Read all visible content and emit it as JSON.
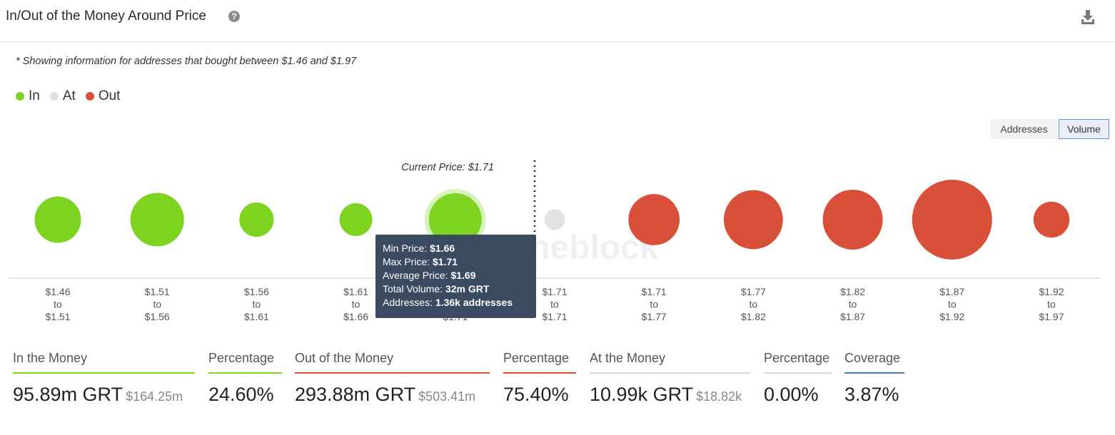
{
  "header": {
    "title": "In/Out of the Money Around Price",
    "help_icon": "question-circle-icon",
    "download_icon": "download-icon"
  },
  "note": "* Showing information for addresses that bought between $1.46 and $1.97",
  "legend": [
    {
      "label": "In",
      "color": "#7ed321"
    },
    {
      "label": "At",
      "color": "#e2e2e2"
    },
    {
      "label": "Out",
      "color": "#d9503a"
    }
  ],
  "toggles": {
    "addresses": "Addresses",
    "volume": "Volume",
    "selected": "Volume"
  },
  "chart_data": {
    "type": "scatter",
    "encoding": "bubble size = total volume (GRT)",
    "current_price_label": "Current Price: $1.71",
    "watermark": "intotheblock",
    "categories": [
      [
        "$1.46",
        "to",
        "$1.51"
      ],
      [
        "$1.51",
        "to",
        "$1.56"
      ],
      [
        "$1.56",
        "to",
        "$1.61"
      ],
      [
        "$1.61",
        "to",
        "$1.66"
      ],
      [
        "$1.66",
        "to",
        "$1.71"
      ],
      [
        "$1.71",
        "to",
        "$1.71"
      ],
      [
        "$1.71",
        "to",
        "$1.77"
      ],
      [
        "$1.77",
        "to",
        "$1.82"
      ],
      [
        "$1.82",
        "to",
        "$1.87"
      ],
      [
        "$1.87",
        "to",
        "$1.92"
      ],
      [
        "$1.92",
        "to",
        "$1.97"
      ]
    ],
    "status": [
      "in",
      "in",
      "in",
      "in",
      "in",
      "at",
      "out",
      "out",
      "out",
      "out",
      "out"
    ],
    "relative_volume": [
      0.58,
      0.67,
      0.43,
      0.41,
      0.66,
      0.26,
      0.64,
      0.74,
      0.75,
      1.0,
      0.45
    ],
    "colors": {
      "in": "#7ed321",
      "at": "#e2e2e2",
      "out": "#d9503a"
    },
    "highlighted_index": 4
  },
  "tooltip": {
    "min_label": "Min Price:",
    "min_value": "$1.66",
    "max_label": "Max Price:",
    "max_value": "$1.71",
    "avg_label": "Average Price:",
    "avg_value": "$1.69",
    "vol_label": "Total Volume:",
    "vol_value": "32m GRT",
    "addr_label": "Addresses:",
    "addr_value": "1.36k addresses"
  },
  "stats": [
    {
      "label": "In the Money",
      "value": "95.89m GRT",
      "sub": "$164.25m",
      "color": "#7ed321"
    },
    {
      "label": "Percentage",
      "value": "24.60%",
      "sub": "",
      "color": "#7ed321"
    },
    {
      "label": "Out of the Money",
      "value": "293.88m GRT",
      "sub": "$503.41m",
      "color": "#d9503a"
    },
    {
      "label": "Percentage",
      "value": "75.40%",
      "sub": "",
      "color": "#d9503a"
    },
    {
      "label": "At the Money",
      "value": "10.99k GRT",
      "sub": "$18.82k",
      "color": "#d9d9d9"
    },
    {
      "label": "Percentage",
      "value": "0.00%",
      "sub": "",
      "color": "#d9d9d9"
    },
    {
      "label": "Coverage",
      "value": "3.87%",
      "sub": "",
      "color": "#4a7cc0"
    }
  ]
}
